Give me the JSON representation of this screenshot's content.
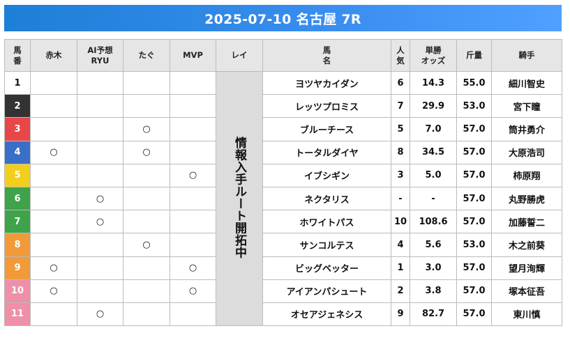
{
  "title": "2025-07-10 名古屋 7R",
  "headers": {
    "umaban": "馬\n番",
    "akagi": "赤木",
    "ai": "AI予想\nRYU",
    "tagu": "たぐ",
    "mvp": "MVP",
    "rei": "レイ",
    "horse": "馬\n名",
    "ninki": "人\n気",
    "odds": "単勝\nオッズ",
    "kinryo": "斤量",
    "jockey": "騎手"
  },
  "lei_text": "情報入手ルート開拓中",
  "mark_symbol": "○",
  "rows": [
    {
      "num": "1",
      "color": "#ffffff",
      "text_color": "#111111",
      "akagi": "",
      "ai": "",
      "tagu": "",
      "mvp": "",
      "horse": "ヨツヤカイダン",
      "ninki": "6",
      "odds": "14.3",
      "kinryo": "55.0",
      "jockey": "細川智史"
    },
    {
      "num": "2",
      "color": "#333333",
      "text_color": "#ffffff",
      "akagi": "",
      "ai": "",
      "tagu": "",
      "mvp": "",
      "horse": "レッツプロミス",
      "ninki": "7",
      "odds": "29.9",
      "kinryo": "53.0",
      "jockey": "宮下瞳"
    },
    {
      "num": "3",
      "color": "#e8474a",
      "text_color": "#ffffff",
      "akagi": "",
      "ai": "",
      "tagu": "○",
      "mvp": "",
      "horse": "ブルーチース",
      "ninki": "5",
      "odds": "7.0",
      "kinryo": "57.0",
      "jockey": "筒井勇介"
    },
    {
      "num": "4",
      "color": "#3a6fc9",
      "text_color": "#ffffff",
      "akagi": "○",
      "ai": "",
      "tagu": "○",
      "mvp": "",
      "horse": "トータルダイヤ",
      "ninki": "8",
      "odds": "34.5",
      "kinryo": "57.0",
      "jockey": "大原浩司"
    },
    {
      "num": "5",
      "color": "#f2cf1d",
      "text_color": "#ffffff",
      "akagi": "",
      "ai": "",
      "tagu": "",
      "mvp": "○",
      "horse": "イブシギン",
      "ninki": "3",
      "odds": "5.0",
      "kinryo": "57.0",
      "jockey": "柿原翔"
    },
    {
      "num": "6",
      "color": "#3fa34a",
      "text_color": "#ffffff",
      "akagi": "",
      "ai": "○",
      "tagu": "",
      "mvp": "",
      "horse": "ネクタリス",
      "ninki": "-",
      "odds": "-",
      "kinryo": "57.0",
      "jockey": "丸野勝虎"
    },
    {
      "num": "7",
      "color": "#3fa34a",
      "text_color": "#ffffff",
      "akagi": "",
      "ai": "○",
      "tagu": "",
      "mvp": "",
      "horse": "ホワイトパス",
      "ninki": "10",
      "odds": "108.6",
      "kinryo": "57.0",
      "jockey": "加藤誓二"
    },
    {
      "num": "8",
      "color": "#f09a3a",
      "text_color": "#ffffff",
      "akagi": "",
      "ai": "",
      "tagu": "○",
      "mvp": "",
      "horse": "サンコルテス",
      "ninki": "4",
      "odds": "5.6",
      "kinryo": "53.0",
      "jockey": "木之前葵"
    },
    {
      "num": "9",
      "color": "#f09a3a",
      "text_color": "#ffffff",
      "akagi": "○",
      "ai": "",
      "tagu": "",
      "mvp": "○",
      "horse": "ビッグベッター",
      "ninki": "1",
      "odds": "3.0",
      "kinryo": "57.0",
      "jockey": "望月洵輝"
    },
    {
      "num": "10",
      "color": "#ef8fa8",
      "text_color": "#ffffff",
      "akagi": "○",
      "ai": "",
      "tagu": "",
      "mvp": "○",
      "horse": "アイアンパシュート",
      "ninki": "2",
      "odds": "3.8",
      "kinryo": "57.0",
      "jockey": "塚本征吾"
    },
    {
      "num": "11",
      "color": "#ef8fa8",
      "text_color": "#ffffff",
      "akagi": "",
      "ai": "○",
      "tagu": "",
      "mvp": "",
      "horse": "オセアジェネシス",
      "ninki": "9",
      "odds": "82.7",
      "kinryo": "57.0",
      "jockey": "東川慎"
    }
  ]
}
